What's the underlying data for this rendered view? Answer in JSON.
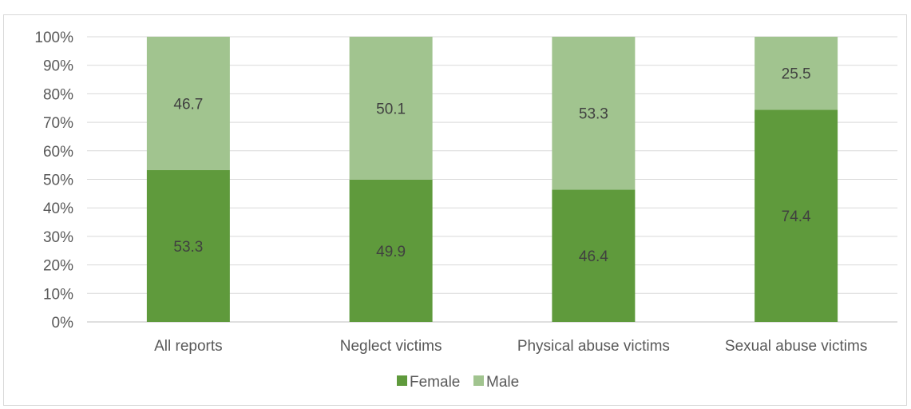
{
  "chart_data": {
    "type": "bar",
    "stacked": true,
    "categories": [
      "All reports",
      "Neglect victims",
      "Physical abuse victims",
      "Sexual abuse victims"
    ],
    "series": [
      {
        "name": "Female",
        "values": [
          53.3,
          49.9,
          46.4,
          74.4
        ],
        "color": "#5f9a3c"
      },
      {
        "name": "Male",
        "values": [
          46.7,
          50.1,
          53.3,
          25.5
        ],
        "color": "#a1c48f"
      }
    ],
    "data_labels": [
      [
        "53.3",
        "49.9",
        "46.4",
        "74.4"
      ],
      [
        "46.7",
        "50.1",
        "53.3",
        "25.5"
      ]
    ],
    "yticks": [
      "0%",
      "10%",
      "20%",
      "30%",
      "40%",
      "50%",
      "60%",
      "70%",
      "80%",
      "90%",
      "100%"
    ],
    "ylim": [
      0,
      100
    ],
    "grid": true,
    "legend_position": "bottom"
  }
}
